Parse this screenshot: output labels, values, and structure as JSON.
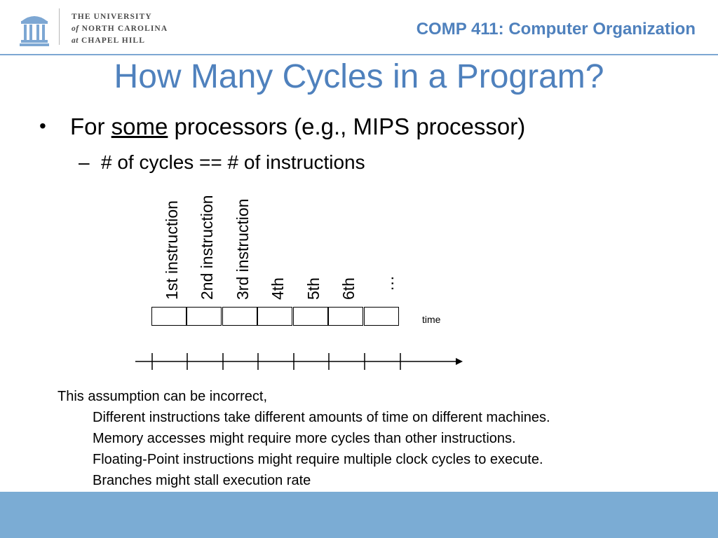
{
  "header": {
    "university_line1": "THE UNIVERSITY",
    "university_line2_prefix": "of",
    "university_line2": "NORTH CAROLINA",
    "university_line3_prefix": "at",
    "university_line3": "CHAPEL HILL",
    "course": "COMP 411: Computer Organization",
    "logo_icon": "old-well-icon"
  },
  "title": "How Many Cycles in a Program?",
  "bullet1": {
    "prefix": "For ",
    "emphasis": "some",
    "suffix": " processors (e.g., MIPS processor)"
  },
  "bullet2": "# of cycles == # of instructions",
  "diagram": {
    "instruction_labels": [
      "1st instruction",
      "2nd instruction",
      "3rd instruction",
      "4th",
      "5th",
      "6th",
      "…"
    ],
    "time_label": "time"
  },
  "note": {
    "lead": "This assumption can be incorrect,",
    "lines": [
      "Different instructions take different amounts of time on different machines.",
      "Memory accesses might require more cycles than other instructions.",
      "Floating-Point instructions might require multiple clock cycles to execute.",
      "Branches might stall execution rate"
    ]
  },
  "colors": {
    "accent": "#4f81bd",
    "footer": "#7bacd4"
  }
}
